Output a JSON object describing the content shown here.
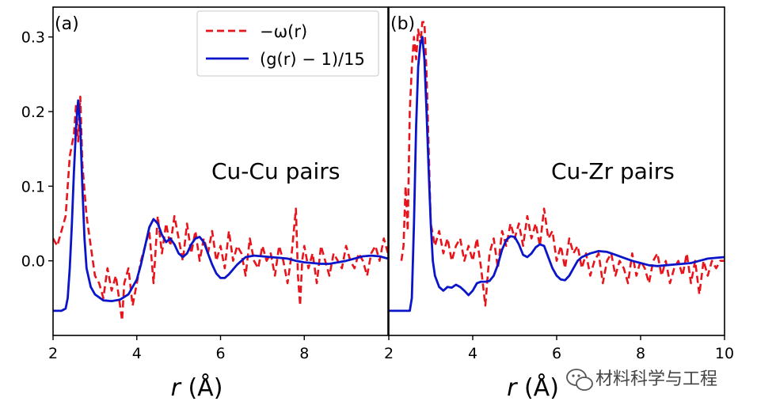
{
  "chart_data": [
    {
      "type": "line",
      "panel_label": "(a)",
      "annotation": "Cu-Cu pairs",
      "xlabel": "r (Å)",
      "xlim": [
        2,
        10
      ],
      "ylim": [
        -0.1,
        0.34
      ],
      "xticks": [
        2,
        4,
        6,
        8
      ],
      "yticks": [
        0.0,
        0.1,
        0.2,
        0.3
      ],
      "series": [
        {
          "name": "−ω(r)",
          "color": "#e8141b",
          "dash": true,
          "x": [
            2.0,
            2.1,
            2.2,
            2.3,
            2.4,
            2.5,
            2.55,
            2.6,
            2.65,
            2.7,
            2.8,
            2.9,
            3.0,
            3.1,
            3.2,
            3.3,
            3.4,
            3.5,
            3.6,
            3.65,
            3.7,
            3.8,
            3.9,
            4.0,
            4.1,
            4.2,
            4.3,
            4.4,
            4.5,
            4.6,
            4.7,
            4.8,
            4.9,
            5.0,
            5.1,
            5.2,
            5.3,
            5.4,
            5.5,
            5.6,
            5.7,
            5.8,
            5.9,
            6.0,
            6.1,
            6.2,
            6.3,
            6.4,
            6.5,
            6.6,
            6.7,
            6.8,
            6.9,
            7.0,
            7.1,
            7.2,
            7.3,
            7.4,
            7.5,
            7.6,
            7.7,
            7.8,
            7.85,
            7.9,
            7.95,
            8.0,
            8.1,
            8.2,
            8.3,
            8.4,
            8.5,
            8.6,
            8.7,
            8.8,
            8.9,
            9.0,
            9.1,
            9.2,
            9.3,
            9.4,
            9.5,
            9.6,
            9.7,
            9.8,
            9.9,
            10.0
          ],
          "y": [
            0.03,
            0.02,
            0.04,
            0.06,
            0.14,
            0.17,
            0.21,
            0.16,
            0.22,
            0.13,
            0.06,
            0.02,
            -0.02,
            -0.03,
            -0.05,
            -0.01,
            -0.04,
            -0.02,
            -0.06,
            -0.08,
            -0.03,
            -0.01,
            -0.06,
            -0.03,
            0.0,
            0.02,
            0.04,
            -0.03,
            0.06,
            0.01,
            0.05,
            0.02,
            0.06,
            0.03,
            0.0,
            0.05,
            0.01,
            0.04,
            0.0,
            0.03,
            0.01,
            0.04,
            0.0,
            0.02,
            -0.01,
            0.04,
            0.0,
            0.02,
            0.01,
            -0.02,
            0.03,
            0.0,
            -0.01,
            0.02,
            0.0,
            0.01,
            -0.02,
            0.02,
            0.0,
            -0.03,
            0.01,
            0.07,
            -0.02,
            -0.06,
            0.0,
            0.02,
            -0.01,
            0.01,
            -0.03,
            0.02,
            0.0,
            -0.02,
            0.01,
            0.0,
            -0.01,
            0.02,
            0.0,
            -0.01,
            0.01,
            0.0,
            -0.02,
            0.01,
            0.02,
            0.0,
            0.03,
            0.01
          ]
        },
        {
          "name": "(g(r) − 1)/15",
          "color": "#0a14c8",
          "dash": false,
          "x": [
            2.0,
            2.2,
            2.3,
            2.35,
            2.4,
            2.45,
            2.5,
            2.55,
            2.6,
            2.65,
            2.7,
            2.75,
            2.8,
            2.9,
            3.0,
            3.2,
            3.4,
            3.6,
            3.8,
            4.0,
            4.1,
            4.2,
            4.3,
            4.4,
            4.5,
            4.6,
            4.7,
            4.8,
            4.9,
            5.0,
            5.1,
            5.2,
            5.3,
            5.4,
            5.5,
            5.6,
            5.7,
            5.8,
            5.9,
            6.0,
            6.1,
            6.2,
            6.4,
            6.6,
            6.8,
            7.0,
            7.2,
            7.4,
            7.6,
            7.8,
            8.0,
            8.2,
            8.4,
            8.6,
            8.8,
            9.0,
            9.2,
            9.4,
            9.6,
            9.8,
            10.0
          ],
          "y": [
            -0.067,
            -0.067,
            -0.064,
            -0.05,
            -0.01,
            0.05,
            0.12,
            0.18,
            0.215,
            0.18,
            0.1,
            0.03,
            -0.01,
            -0.035,
            -0.045,
            -0.053,
            -0.054,
            -0.052,
            -0.045,
            -0.025,
            -0.005,
            0.02,
            0.045,
            0.056,
            0.05,
            0.035,
            0.025,
            0.03,
            0.022,
            0.01,
            0.005,
            0.01,
            0.022,
            0.03,
            0.032,
            0.025,
            0.01,
            -0.005,
            -0.017,
            -0.023,
            -0.023,
            -0.018,
            -0.005,
            0.005,
            0.007,
            0.006,
            0.005,
            0.004,
            0.003,
            0.0,
            -0.002,
            -0.003,
            -0.004,
            -0.004,
            -0.002,
            0.0,
            0.003,
            0.006,
            0.007,
            0.006,
            0.003
          ]
        }
      ]
    },
    {
      "type": "line",
      "panel_label": "(b)",
      "annotation": "Cu-Zr pairs",
      "xlabel": "r (Å)",
      "xlim": [
        2,
        10
      ],
      "ylim": [
        -0.1,
        0.34
      ],
      "xticks": [
        2,
        4,
        6,
        8,
        10
      ],
      "yticks": [
        0.0,
        0.1,
        0.2,
        0.3
      ],
      "series": [
        {
          "name": "−ω(r)",
          "color": "#e8141b",
          "dash": true,
          "x": [
            2.3,
            2.35,
            2.4,
            2.45,
            2.5,
            2.55,
            2.6,
            2.65,
            2.7,
            2.75,
            2.8,
            2.85,
            2.9,
            2.95,
            3.0,
            3.1,
            3.2,
            3.3,
            3.4,
            3.5,
            3.6,
            3.7,
            3.8,
            3.9,
            4.0,
            4.1,
            4.2,
            4.3,
            4.4,
            4.5,
            4.6,
            4.7,
            4.8,
            4.9,
            5.0,
            5.1,
            5.2,
            5.3,
            5.4,
            5.5,
            5.6,
            5.7,
            5.8,
            5.9,
            6.0,
            6.1,
            6.2,
            6.3,
            6.4,
            6.5,
            6.6,
            6.7,
            6.8,
            6.9,
            7.0,
            7.1,
            7.2,
            7.3,
            7.4,
            7.5,
            7.6,
            7.7,
            7.8,
            7.9,
            8.0,
            8.1,
            8.2,
            8.3,
            8.4,
            8.5,
            8.6,
            8.7,
            8.8,
            8.9,
            9.0,
            9.1,
            9.2,
            9.3,
            9.4,
            9.5,
            9.6,
            9.7,
            9.8,
            9.9,
            10.0
          ],
          "y": [
            0.0,
            0.02,
            0.1,
            0.04,
            0.2,
            0.26,
            0.3,
            0.27,
            0.31,
            0.29,
            0.32,
            0.32,
            0.25,
            0.15,
            0.05,
            0.02,
            0.04,
            0.01,
            0.03,
            0.0,
            0.02,
            0.03,
            0.0,
            0.02,
            0.0,
            0.03,
            -0.01,
            -0.06,
            0.01,
            0.03,
            -0.01,
            0.04,
            0.02,
            0.05,
            0.03,
            0.05,
            0.02,
            0.06,
            0.03,
            0.05,
            0.02,
            0.07,
            0.03,
            0.04,
            0.0,
            0.02,
            -0.01,
            0.03,
            0.01,
            0.02,
            -0.01,
            0.01,
            -0.02,
            0.0,
            0.01,
            -0.03,
            0.0,
            0.01,
            -0.02,
            0.0,
            -0.01,
            -0.03,
            0.01,
            -0.02,
            0.0,
            -0.01,
            -0.03,
            0.0,
            0.01,
            -0.02,
            0.0,
            -0.03,
            -0.01,
            0.0,
            -0.02,
            0.01,
            -0.03,
            0.0,
            -0.045,
            0.0,
            -0.02,
            0.0,
            -0.01,
            0.0,
            0.0
          ]
        },
        {
          "name": "(g(r) − 1)/15",
          "color": "#0a14c8",
          "dash": false,
          "x": [
            2.0,
            2.5,
            2.55,
            2.6,
            2.65,
            2.7,
            2.75,
            2.8,
            2.85,
            2.9,
            2.95,
            3.0,
            3.05,
            3.1,
            3.2,
            3.3,
            3.4,
            3.5,
            3.6,
            3.7,
            3.8,
            3.9,
            4.0,
            4.1,
            4.2,
            4.3,
            4.4,
            4.5,
            4.6,
            4.7,
            4.8,
            4.9,
            5.0,
            5.1,
            5.2,
            5.3,
            5.4,
            5.5,
            5.6,
            5.7,
            5.8,
            5.9,
            6.0,
            6.1,
            6.2,
            6.3,
            6.4,
            6.5,
            6.6,
            6.8,
            7.0,
            7.2,
            7.4,
            7.6,
            7.8,
            8.0,
            8.2,
            8.4,
            8.6,
            8.8,
            9.0,
            9.2,
            9.4,
            9.6,
            9.8,
            10.0
          ],
          "y": [
            -0.067,
            -0.067,
            -0.05,
            0.05,
            0.18,
            0.26,
            0.29,
            0.3,
            0.27,
            0.2,
            0.12,
            0.05,
            0.0,
            -0.02,
            -0.035,
            -0.04,
            -0.035,
            -0.036,
            -0.032,
            -0.035,
            -0.04,
            -0.046,
            -0.04,
            -0.03,
            -0.028,
            -0.028,
            -0.027,
            -0.02,
            -0.005,
            0.015,
            0.028,
            0.033,
            0.032,
            0.022,
            0.008,
            0.005,
            0.01,
            0.018,
            0.022,
            0.02,
            0.005,
            -0.01,
            -0.02,
            -0.025,
            -0.026,
            -0.02,
            -0.01,
            0.0,
            0.005,
            0.01,
            0.013,
            0.012,
            0.008,
            0.004,
            0.0,
            -0.003,
            -0.006,
            -0.007,
            -0.006,
            -0.005,
            -0.004,
            -0.003,
            0.0,
            0.003,
            0.004,
            0.005
          ]
        }
      ]
    }
  ],
  "legend": {
    "items": [
      {
        "label": "−ω(r)",
        "color": "#e8141b",
        "dash": true
      },
      {
        "label": "(g(r) − 1)/15",
        "color": "#0a14c8",
        "dash": false
      }
    ],
    "placement": "top-center"
  },
  "watermark": {
    "text": "材料科学与工程",
    "icon": "wechat-icon"
  }
}
